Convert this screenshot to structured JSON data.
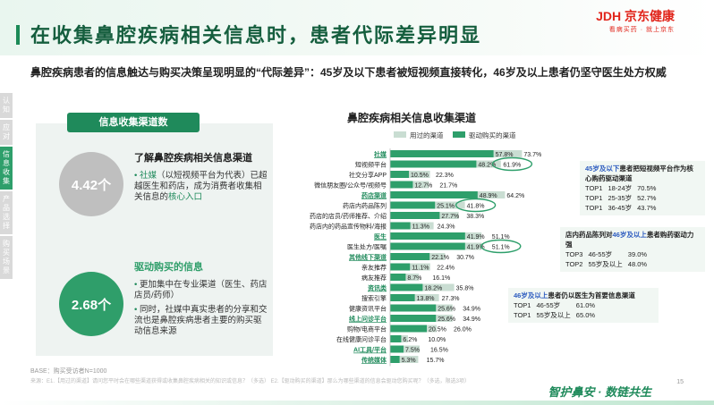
{
  "header": {
    "title": "在收集鼻腔疾病相关信息时，患者代际差异明显",
    "logo_main": "JDH 京东健康",
    "logo_sub": "看病买药 · 就上京东"
  },
  "subtitle": "鼻腔疾病患者的信息触达与购买决策呈现明显的“代际差异”：45岁及以下患者被短视频直接转化，46岁及以上患者仍坚守医生处方权威",
  "side_nav": [
    {
      "label": "认知"
    },
    {
      "label": "应对"
    },
    {
      "label": "信息收集"
    },
    {
      "label": "产品选择"
    },
    {
      "label": "购买场景"
    }
  ],
  "left": {
    "panel_title": "信息收集渠道数",
    "metric1": "4.42个",
    "block1_title": "了解鼻腔疾病相关信息渠道",
    "block1_bullet_a": "社媒",
    "block1_bullet_b": "（以短视频平台为代表）已超越医生和药店，成为消费者收集相关信息的",
    "block1_bullet_c": "核心入口",
    "metric2": "2.68个",
    "block2_title": "驱动购买的信息",
    "block2_bullet1": "更加集中在专业渠道（医生、药店店员/药师）",
    "block2_bullet2": "同时，社媒中真实患者的分享和交流也是鼻腔疾病患者主要的购买驱动信息来源"
  },
  "chart_data": {
    "type": "bar",
    "title": "鼻腔疾病相关信息收集渠道",
    "legend": [
      "用过的渠道",
      "驱动购买的渠道"
    ],
    "legend_position": "top",
    "colors": {
      "used": "#c9ddd2",
      "driver": "#2e9f6b",
      "group_label": "#1f8a5b"
    },
    "categories": [
      "社媒",
      "短视频平台",
      "社交分享APP",
      "微信朋友圈/公众号/视频号",
      "药店渠道",
      "药店内药品陈列",
      "药店的店员/药师推荐、介绍",
      "药店内的药品宣传物料/海报",
      "医生",
      "医生处方/医嘱",
      "其他线下渠道",
      "亲友推荐",
      "病友推荐",
      "资讯类",
      "搜索引擎",
      "健康资讯平台",
      "线上问诊平台",
      "购物/电商平台",
      "在线健康问诊平台",
      "AI工具/平台",
      "传统媒体"
    ],
    "group_rows": [
      "社媒",
      "药店渠道",
      "医生",
      "其他线下渠道",
      "资讯类",
      "线上问诊平台",
      "AI工具/平台",
      "传统媒体"
    ],
    "series": [
      {
        "name": "用过的渠道",
        "values": [
          73.7,
          61.9,
          22.3,
          21.7,
          64.2,
          41.8,
          38.3,
          24.3,
          51.1,
          51.1,
          30.7,
          22.4,
          16.1,
          35.8,
          27.3,
          34.9,
          34.9,
          26.0,
          10.0,
          16.5,
          15.7
        ]
      },
      {
        "name": "驱动购买的渠道",
        "values": [
          57.8,
          48.2,
          10.5,
          12.7,
          48.9,
          25.1,
          27.7,
          11.3,
          41.9,
          41.9,
          22.1,
          11.1,
          8.7,
          18.2,
          13.8,
          25.6,
          25.6,
          20.5,
          6.2,
          7.5,
          5.3
        ]
      }
    ],
    "value_labels_used": [
      "73.7%",
      "61.9%",
      "22.3%",
      "21.7%",
      "64.2%",
      "41.8%",
      "38.3%",
      "24.3%",
      "51.1%",
      "51.1%",
      "30.7%",
      "22.4%",
      "16.1%",
      "35.8%",
      "27.3%",
      "34.9%",
      "34.9%",
      "26.0%",
      "10.0%",
      "16.5%",
      "15.7%"
    ],
    "value_labels_driver": [
      "57.8%",
      "48.2%",
      "10.5%",
      "12.7%",
      "48.9%",
      "25.1%",
      "27.7%",
      "11.3%",
      "41.9%",
      "41.9%",
      "22.1%",
      "11.1%",
      "8.7%",
      "18.2%",
      "13.8%",
      "25.6%",
      "25.6%",
      "20.5%",
      "6.2%",
      "7.5%",
      "5.3%"
    ],
    "highlighted": [
      "短视频平台",
      "药店内药品陈列",
      "医生处方/医嘱"
    ],
    "xlim": [
      0,
      80
    ]
  },
  "callouts": [
    {
      "title_prefix": "45岁及以下",
      "title_rest": "患者把短视频平台作为核心购药驱动渠道",
      "rows": [
        [
          "TOP1",
          "18-24岁",
          "70.5%"
        ],
        [
          "TOP1",
          "25-35岁",
          "52.7%"
        ],
        [
          "TOP1",
          "36-45岁",
          "43.7%"
        ]
      ]
    },
    {
      "title_prefix": "店内药品陈列对",
      "title_highlight": "46岁及以上",
      "title_rest": "患者购药驱动力强",
      "rows": [
        [
          "TOP3",
          "46-55岁",
          "39.0%"
        ],
        [
          "TOP2",
          "55岁及以上",
          "48.0%"
        ]
      ]
    },
    {
      "title_prefix": "46岁及以上",
      "title_rest": "患者仍以医生为首要信息渠道",
      "rows": [
        [
          "TOP1",
          "46-55岁",
          "61.0%"
        ],
        [
          "TOP1",
          "55岁及以上",
          "65.0%"
        ]
      ]
    }
  ],
  "footer": {
    "base": "BASE：购买受访者N=1000",
    "source": "来源：E1.【用过的渠道】请问您平时会在哪些渠道获得或收集鼻腔疾病相关的知识或信息？（多选） E2.【驱动购买的渠道】那么为哪些渠道的信息会驱动您购买呢？（多选，限选3项）",
    "slogan": "智护鼻安 · 数链共生",
    "page": "15"
  }
}
